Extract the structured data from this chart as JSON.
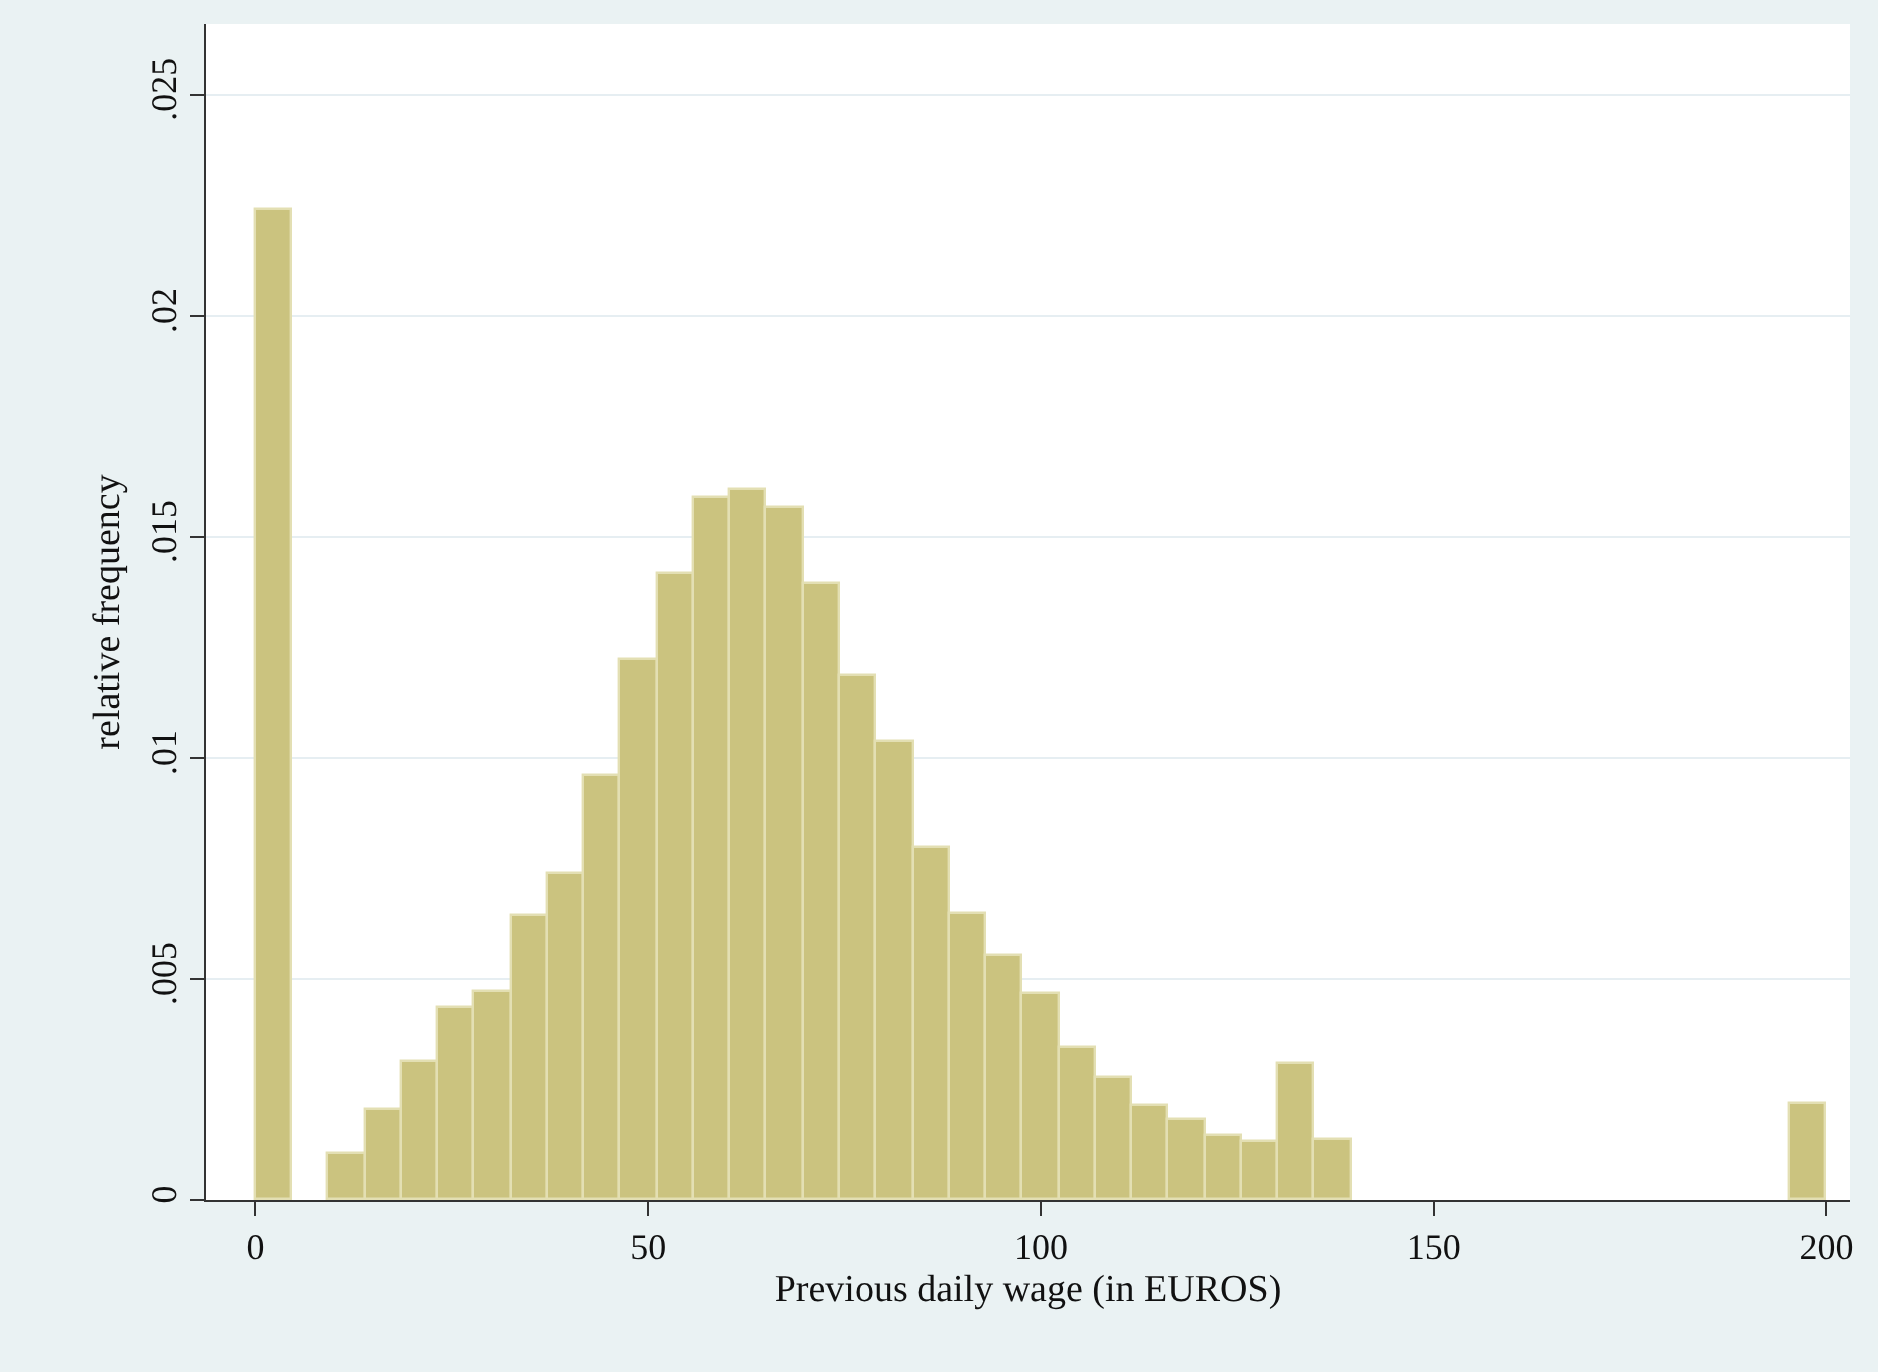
{
  "chart_data": {
    "type": "histogram",
    "xlabel": "Previous daily wage (in EUROS)",
    "ylabel": "relative frequency",
    "bins": [
      0,
      4.65,
      9.3,
      13.95,
      18.6,
      23.26,
      27.91,
      32.56,
      37.21,
      41.86,
      46.51,
      51.16,
      55.81,
      60.47,
      65.12,
      69.77,
      74.42,
      79.07,
      83.72,
      88.37,
      93.02,
      97.67,
      102.33,
      106.98,
      111.63,
      116.28,
      120.93,
      125.58,
      130.23,
      134.88,
      139.53,
      144.19,
      148.84,
      153.49,
      158.14,
      162.79,
      167.44,
      172.09,
      176.74,
      181.4,
      186.05,
      190.7,
      195.35,
      200
    ],
    "values": [
      0.0224,
      0,
      0.00103,
      0.00202,
      0.00314,
      0.00433,
      0.00472,
      0.00642,
      0.00736,
      0.00958,
      0.0122,
      0.01416,
      0.01588,
      0.01605,
      0.01566,
      0.01395,
      0.01186,
      0.01036,
      0.00797,
      0.00646,
      0.00552,
      0.00467,
      0.00346,
      0.00274,
      0.00211,
      0.00181,
      0.00143,
      0.0013,
      0.00307,
      0.00137,
      0,
      0,
      0,
      0,
      0,
      0,
      0,
      0,
      0,
      0,
      0,
      0,
      0.00218
    ],
    "color": "#cbc37f",
    "xlim": [
      -6.3,
      203
    ],
    "xticks": [
      0,
      50,
      100,
      150,
      200
    ],
    "ylim": [
      0,
      0.0266
    ],
    "yticks": [
      {
        "value": 0,
        "label": "0"
      },
      {
        "value": 0.005,
        "label": ".005"
      },
      {
        "value": 0.01,
        "label": ".01"
      },
      {
        "value": 0.015,
        "label": ".015"
      },
      {
        "value": 0.02,
        "label": ".02"
      },
      {
        "value": 0.025,
        "label": ".025"
      }
    ],
    "grid": "y"
  }
}
